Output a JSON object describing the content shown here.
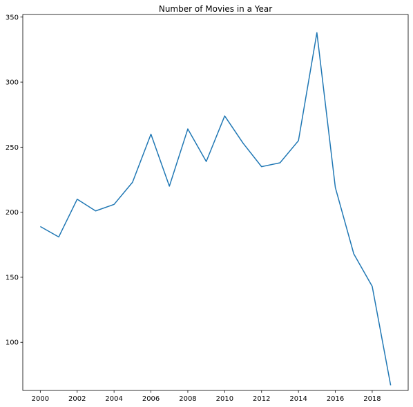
{
  "chart_data": {
    "type": "line",
    "title": "Number of Movies in a Year",
    "xlabel": "",
    "ylabel": "",
    "xlim": [
      1999.05,
      2019.95
    ],
    "ylim": [
      63,
      352
    ],
    "grid": false,
    "x_ticks": [
      2000,
      2002,
      2004,
      2006,
      2008,
      2010,
      2012,
      2014,
      2016,
      2018
    ],
    "y_ticks": [
      100,
      150,
      200,
      250,
      300,
      350
    ],
    "series": [
      {
        "color": "#1f77b4",
        "x": [
          2000,
          2001,
          2002,
          2003,
          2004,
          2005,
          2006,
          2007,
          2008,
          2009,
          2010,
          2011,
          2012,
          2013,
          2014,
          2015,
          2016,
          2017,
          2018,
          2019
        ],
        "y": [
          189,
          181,
          210,
          201,
          206,
          223,
          260,
          220,
          264,
          239,
          274,
          253,
          235,
          238,
          255,
          338,
          219,
          168,
          143,
          67
        ]
      }
    ]
  }
}
